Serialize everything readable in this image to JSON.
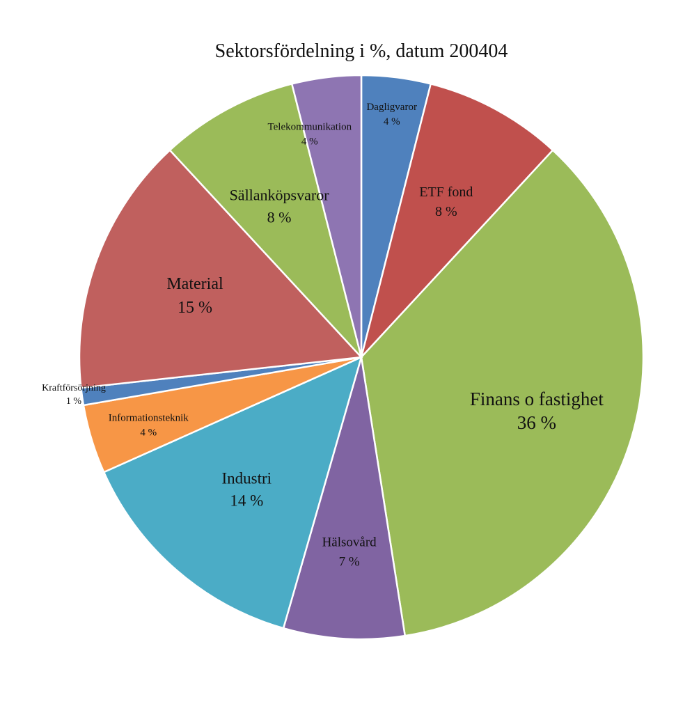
{
  "chart_data": {
    "type": "pie",
    "title": "Sektorsfördelning i %, datum 200404",
    "slices": [
      {
        "label": "Dagligvaror",
        "value": 4,
        "display": "4 %",
        "color": "#4f81bd"
      },
      {
        "label": "ETF fond",
        "value": 8,
        "display": "8 %",
        "color": "#c0504d"
      },
      {
        "label": "Finans o fastighet",
        "value": 36,
        "display": "36 %",
        "color": "#9bbb59"
      },
      {
        "label": "Hälsovård",
        "value": 7,
        "display": "7 %",
        "color": "#8064a2"
      },
      {
        "label": "Industri",
        "value": 14,
        "display": "14 %",
        "color": "#4bacc6"
      },
      {
        "label": "Informationsteknik",
        "value": 4,
        "display": "4 %",
        "color": "#f79646"
      },
      {
        "label": "Kraftförsörjning",
        "value": 1,
        "display": "1 %",
        "color": "#4f81bd"
      },
      {
        "label": "Material",
        "value": 15,
        "display": "15 %",
        "color": "#c0605e"
      },
      {
        "label": "Sällanköpsvaror",
        "value": 8,
        "display": "8 %",
        "color": "#9bbb59"
      },
      {
        "label": "Telekommunikation",
        "value": 4,
        "display": "4 %",
        "color": "#8e75b2"
      }
    ],
    "start_angle": "12 o'clock",
    "direction": "clockwise",
    "legend": "none"
  }
}
